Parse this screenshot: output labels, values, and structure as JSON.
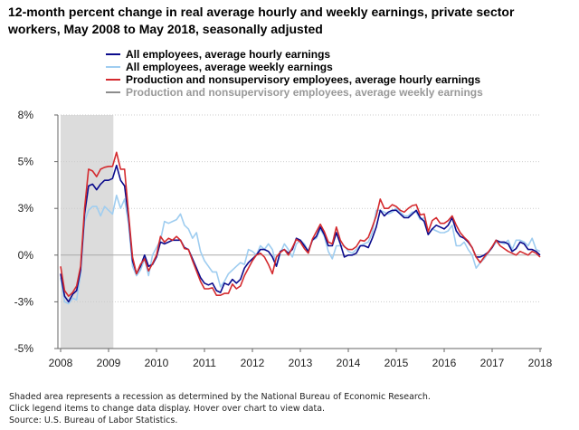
{
  "chart_data": {
    "type": "line",
    "title": "12-month percent change in real average hourly and weekly earnings, private sector workers, May 2008 to May 2018, seasonally adjusted",
    "xlabel": "",
    "ylabel": "",
    "x_start": "2008-01",
    "x_frequency": "monthly",
    "xlim": [
      2008,
      2018
    ],
    "ylim": [
      -5,
      7.5
    ],
    "x_ticks": [
      "2008",
      "2009",
      "2010",
      "2011",
      "2012",
      "2013",
      "2014",
      "2015",
      "2016",
      "2017",
      "2018"
    ],
    "y_ticks": [
      {
        "value": 7.5,
        "label": "8%"
      },
      {
        "value": 5,
        "label": "5%"
      },
      {
        "value": 2.5,
        "label": "3%"
      },
      {
        "value": 0,
        "label": "0%"
      },
      {
        "value": -2.5,
        "label": "-3%"
      },
      {
        "value": -5,
        "label": "-5%"
      }
    ],
    "grid": true,
    "legend_position": "top",
    "recession": {
      "start": 2008.0,
      "end": 2009.1
    },
    "series": [
      {
        "name": "All employees, average hourly earnings",
        "color": "#0b0b8c",
        "visible": true,
        "values": [
          -1.0,
          -2.2,
          -2.5,
          -2.1,
          -1.9,
          -0.8,
          2.2,
          3.7,
          3.8,
          3.5,
          3.8,
          4.0,
          4.0,
          4.1,
          4.8,
          4.0,
          3.7,
          2.0,
          -0.3,
          -1.0,
          -0.6,
          0,
          -0.6,
          -0.5,
          -0.1,
          0.7,
          0.6,
          0.7,
          0.8,
          0.8,
          0.8,
          0.4,
          0.3,
          -0.2,
          -0.7,
          -1.2,
          -1.5,
          -1.6,
          -1.5,
          -1.9,
          -2.0,
          -1.5,
          -1.6,
          -1.3,
          -1.5,
          -1.3,
          -0.7,
          -0.4,
          -0.2,
          0,
          0.3,
          0.3,
          0.2,
          -0.1,
          -0.6,
          0.2,
          0.3,
          0.1,
          0.3,
          0.9,
          0.8,
          0.5,
          0.2,
          0.8,
          1.0,
          1.5,
          1.1,
          0.5,
          0.5,
          1.2,
          0.6,
          -0.1,
          0,
          0,
          0.1,
          0.5,
          0.5,
          0.4,
          0.9,
          1.5,
          2.4,
          2.1,
          2.3,
          2.4,
          2.4,
          2.2,
          2.0,
          2.0,
          2.2,
          2.4,
          2.0,
          1.8,
          1.1,
          1.4,
          1.6,
          1.5,
          1.4,
          1.6,
          2.0,
          1.3,
          1.0,
          0.9,
          0.7,
          0.4,
          -0.1,
          -0.1,
          0.0,
          0.15,
          0.4,
          0.8,
          0.7,
          0.7,
          0.6,
          0.2,
          0.35,
          0.7,
          0.6,
          0.3,
          0.3,
          0.2,
          0
        ]
      },
      {
        "name": "All employees, average weekly earnings",
        "color": "#9fcdf0",
        "visible": true,
        "values": [
          -1.2,
          -2.5,
          -2.6,
          -2.3,
          -2.4,
          -1.0,
          1.8,
          2.4,
          2.6,
          2.6,
          2.1,
          2.6,
          2.4,
          2.2,
          3.2,
          2.5,
          3.0,
          1.7,
          -0.6,
          -1.1,
          -0.8,
          -0.2,
          -1.1,
          0,
          0.4,
          0.8,
          1.8,
          1.7,
          1.8,
          1.9,
          2.2,
          1.6,
          1.4,
          0.9,
          1.2,
          0.2,
          -0.3,
          -0.6,
          -0.9,
          -0.9,
          -1.7,
          -1.4,
          -1.0,
          -0.8,
          -0.6,
          -0.4,
          -0.5,
          0.3,
          0.2,
          0,
          0.5,
          0.3,
          0.6,
          0.3,
          -0.6,
          0.1,
          0.6,
          0.3,
          -0.1,
          0.6,
          0.8,
          0.6,
          0.2,
          0.8,
          0.9,
          1.4,
          1.0,
          0.2,
          -0.2,
          0.5,
          0.5,
          0.5,
          0.2,
          0.1,
          0.3,
          0.5,
          0.6,
          0.7,
          1.2,
          2.4,
          2.4,
          2.3,
          2.2,
          2.3,
          2.5,
          2.3,
          2.1,
          2.1,
          2.3,
          2.3,
          1.9,
          2.0,
          1.1,
          1.4,
          1.3,
          1.2,
          1.2,
          1.3,
          1.6,
          0.5,
          0.5,
          0.7,
          0.3,
          0,
          -0.7,
          -0.4,
          -0.2,
          0.1,
          0.4,
          0.7,
          0.7,
          0.6,
          0.8,
          0.3,
          0.8,
          0.8,
          0.7,
          0.5,
          0.9,
          0.3,
          0.2
        ]
      },
      {
        "name": "Production and nonsupervisory employees, average hourly earnings",
        "color": "#d42a2e",
        "visible": true,
        "values": [
          -0.6,
          -1.9,
          -2.2,
          -2.0,
          -1.65,
          -0.6,
          2.5,
          4.6,
          4.5,
          4.2,
          4.6,
          4.7,
          4.75,
          4.75,
          5.5,
          4.6,
          4.6,
          2.2,
          -0.1,
          -1.0,
          -0.5,
          -0.2,
          -0.85,
          -0.45,
          0,
          1.0,
          0.7,
          0.9,
          0.8,
          1.0,
          0.8,
          0.35,
          0.3,
          -0.3,
          -0.85,
          -1.4,
          -1.8,
          -1.8,
          -1.75,
          -2.15,
          -2.15,
          -2.05,
          -2.05,
          -1.55,
          -1.8,
          -1.65,
          -1.1,
          -0.7,
          -0.3,
          0,
          0.1,
          -0.1,
          -0.5,
          -1.0,
          -0.1,
          0.15,
          0.3,
          0,
          0.4,
          0.85,
          0.7,
          0.35,
          0.1,
          0.85,
          1.25,
          1.65,
          1.25,
          0.7,
          0.6,
          1.5,
          0.8,
          0.45,
          0.3,
          0.3,
          0.45,
          0.8,
          0.75,
          0.95,
          1.5,
          2.1,
          3.0,
          2.5,
          2.5,
          2.7,
          2.6,
          2.4,
          2.3,
          2.5,
          2.65,
          2.7,
          2.15,
          2.2,
          1.25,
          1.85,
          2.0,
          1.7,
          1.7,
          1.85,
          2.1,
          1.6,
          1.2,
          0.95,
          0.75,
          0.4,
          -0.1,
          -0.4,
          -0.1,
          0.15,
          0.45,
          0.8,
          0.5,
          0.35,
          0.2,
          0.1,
          0,
          0.2,
          0.1,
          0,
          0.2,
          0.1,
          -0.1
        ]
      },
      {
        "name": "Production and nonsupervisory employees, average weekly earnings",
        "color": "#8c8c8c",
        "visible": false,
        "values": []
      }
    ]
  },
  "footnotes": [
    "Shaded area represents a recession as determined by the National Bureau of Economic Research.",
    "Click legend items to change data display. Hover over chart to view data.",
    "Source: U.S. Bureau of Labor Statistics."
  ]
}
